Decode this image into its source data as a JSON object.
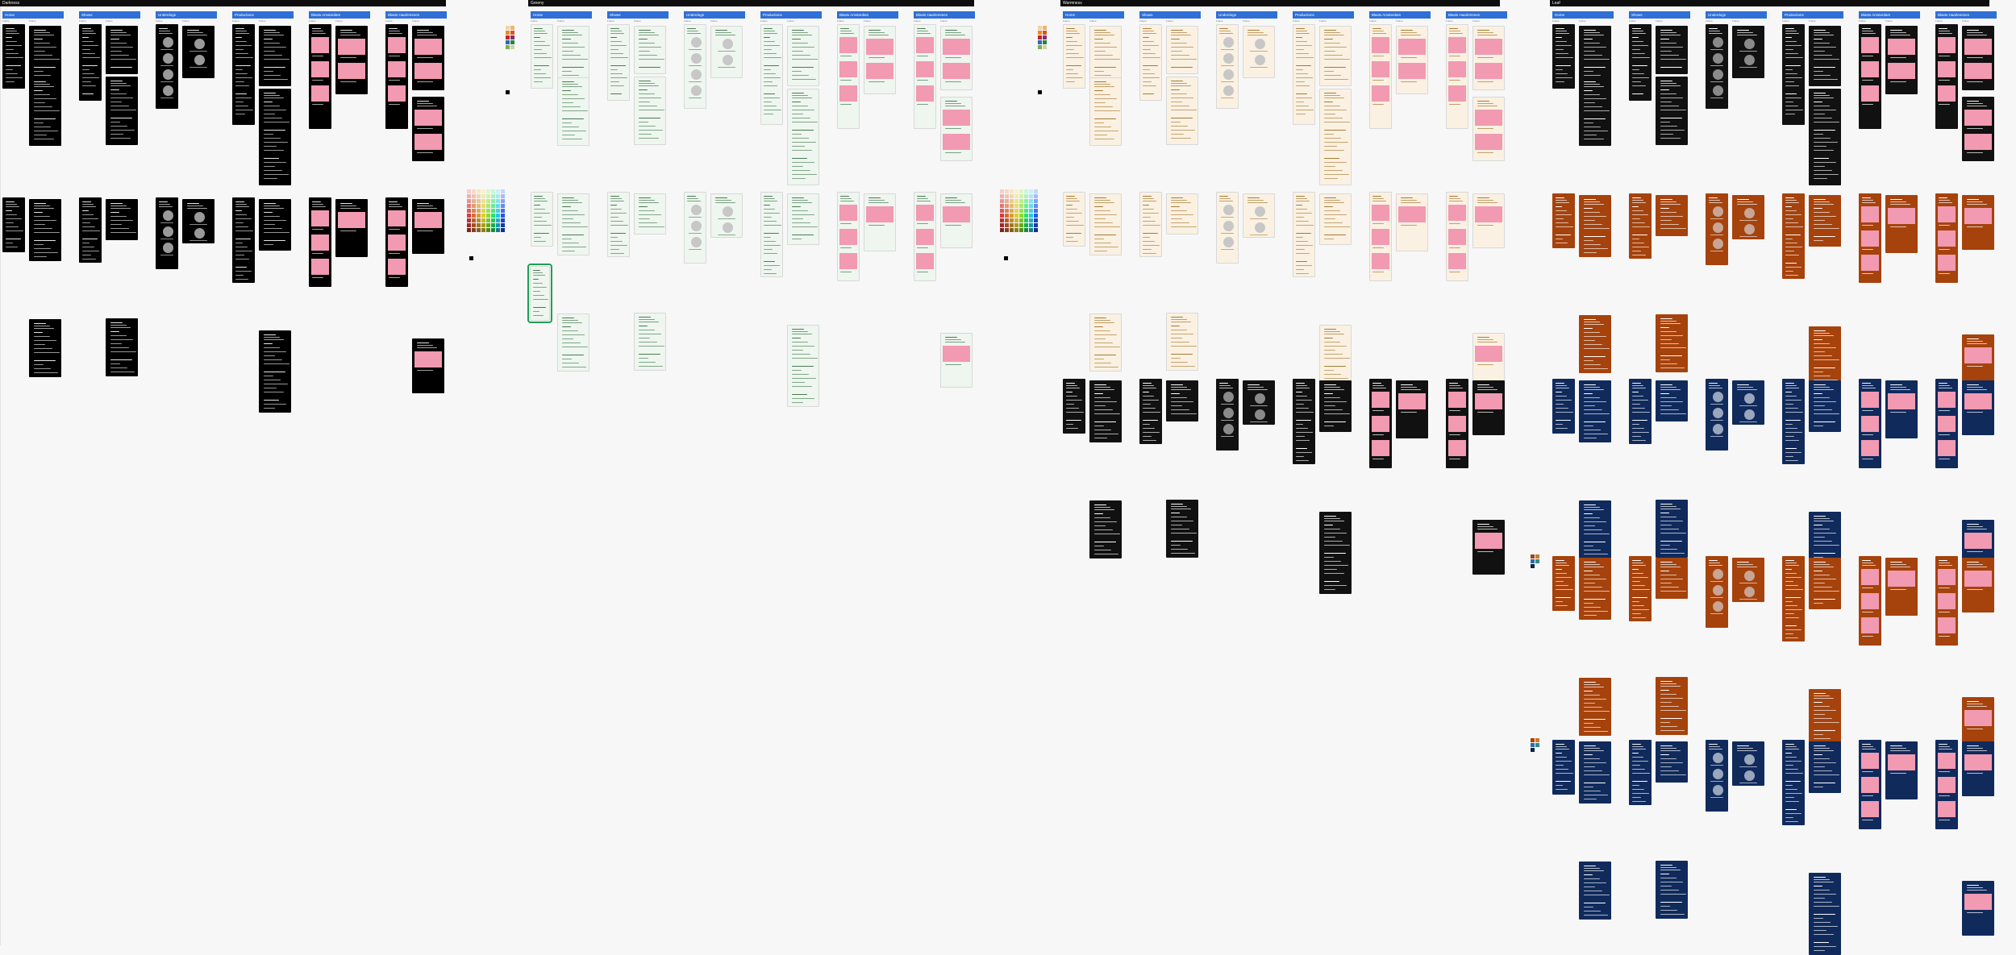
{
  "sections": [
    {
      "title": "Darkness",
      "theme": "dark",
      "bg": "#000000",
      "accent": "#ffffff"
    },
    {
      "title": "Greeny",
      "theme": "green",
      "bg": "#eef6ef",
      "accent": "#3d7a47"
    },
    {
      "title": "Warmness",
      "theme": "cream",
      "bg": "#fbf1e2",
      "accent": "#a77a33"
    },
    {
      "title": "Leaf",
      "theme": "navy",
      "bg": "#102a5c",
      "accent": "#ffffff"
    }
  ],
  "page_tabs": [
    "Home",
    "Shows",
    "Underdogs",
    "Productions",
    "Blasts Amsterdam",
    "Blasts Haarlemmen"
  ],
  "page_tab_counts": {
    "dark": [
      2,
      2,
      2,
      2,
      2,
      2
    ],
    "green": [
      2,
      2,
      2,
      2,
      2,
      2
    ],
    "cream": [
      2,
      2,
      2,
      2,
      2,
      2
    ],
    "navy": [
      2,
      2,
      2,
      2,
      2,
      2
    ]
  },
  "frame_label": "Frame",
  "colors": {
    "tab_bar": "#2f6fd6",
    "section_bar": "#0d0d0d",
    "selection": "#1f9d55",
    "pink_block": "#f19ab2",
    "orange": "#a6420c",
    "navy": "#102a5c"
  },
  "icons": [
    "palette-icon"
  ]
}
